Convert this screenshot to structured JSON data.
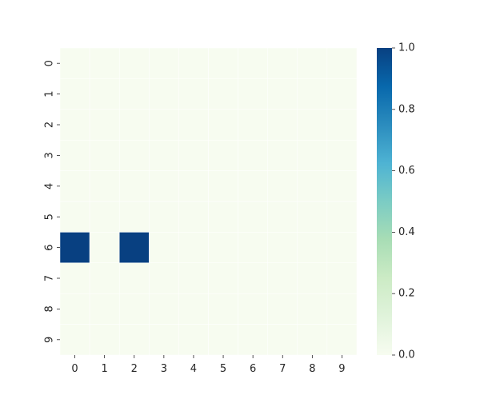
{
  "chart_data": {
    "type": "heatmap",
    "title": "",
    "xlabel": "",
    "ylabel": "",
    "x_categories": [
      "0",
      "1",
      "2",
      "3",
      "4",
      "5",
      "6",
      "7",
      "8",
      "9"
    ],
    "y_categories": [
      "0",
      "1",
      "2",
      "3",
      "4",
      "5",
      "6",
      "7",
      "8",
      "9"
    ],
    "values": [
      [
        0,
        0,
        0,
        0,
        0,
        0,
        0,
        0,
        0,
        0
      ],
      [
        0,
        0,
        0,
        0,
        0,
        0,
        0,
        0,
        0,
        0
      ],
      [
        0,
        0,
        0,
        0,
        0,
        0,
        0,
        0,
        0,
        0
      ],
      [
        0,
        0,
        0,
        0,
        0,
        0,
        0,
        0,
        0,
        0
      ],
      [
        0,
        0,
        0,
        0,
        0,
        0,
        0,
        0,
        0,
        0
      ],
      [
        0,
        0,
        0,
        0,
        0,
        0,
        0,
        0,
        0,
        0
      ],
      [
        1,
        0,
        1,
        0,
        0,
        0,
        0,
        0,
        0,
        0
      ],
      [
        0,
        0,
        0,
        0,
        0,
        0,
        0,
        0,
        0,
        0
      ],
      [
        0,
        0,
        0,
        0,
        0,
        0,
        0,
        0,
        0,
        0
      ],
      [
        0,
        0,
        0,
        0,
        0,
        0,
        0,
        0,
        0,
        0
      ]
    ],
    "colorbar": {
      "range": [
        0.0,
        1.0
      ],
      "ticks": [
        "0.0",
        "0.2",
        "0.4",
        "0.6",
        "0.8",
        "1.0"
      ],
      "colormap": "GnBu",
      "colormap_stops": [
        "#f7fcf0",
        "#e0f3db",
        "#ccebc5",
        "#a8ddb5",
        "#7bccc4",
        "#4eb3d3",
        "#2b8cbe",
        "#0868ac",
        "#084081"
      ]
    },
    "grid": false,
    "cell_border_color": "#ffffff",
    "legend": "colorbar-right"
  }
}
